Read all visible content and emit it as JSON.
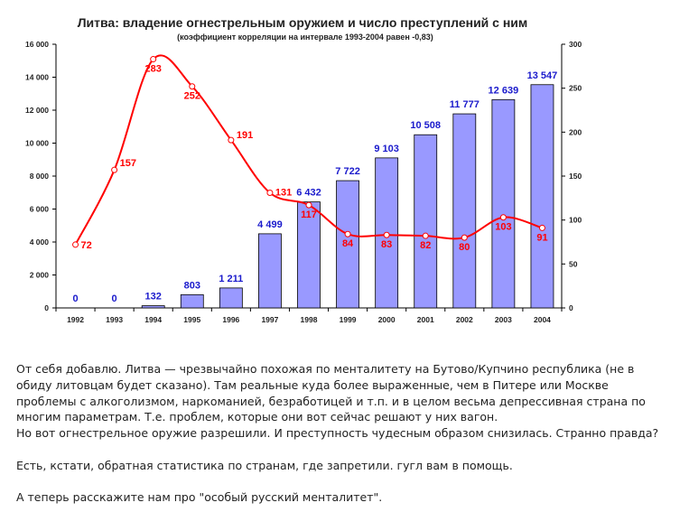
{
  "chart_data": {
    "type": "bar+line",
    "title": "Литва: владение огнестрельным оружием и число преступлений с ним",
    "subtitle": "(коэффициент корреляции на интервале 1993-2004 равен -0,83)",
    "categories": [
      "1992",
      "1993",
      "1994",
      "1995",
      "1996",
      "1997",
      "1998",
      "1999",
      "2000",
      "2001",
      "2002",
      "2003",
      "2004"
    ],
    "series": [
      {
        "type": "bar",
        "axis": "left",
        "values": [
          0,
          0,
          132,
          803,
          1211,
          4499,
          6432,
          7722,
          9103,
          10508,
          11777,
          12639,
          13547
        ],
        "labels": [
          "0",
          "0",
          "132",
          "803",
          "1 211",
          "4 499",
          "6 432",
          "7 722",
          "9 103",
          "10 508",
          "11 777",
          "12 639",
          "13 547"
        ],
        "color": "#9999ff",
        "label_color": "#1a1acc"
      },
      {
        "type": "line",
        "axis": "right",
        "values": [
          72,
          157,
          283,
          252,
          191,
          131,
          117,
          84,
          83,
          82,
          80,
          103,
          91
        ],
        "labels": [
          "72",
          "157",
          "283",
          "252",
          "191",
          "131",
          "117",
          "84",
          "83",
          "82",
          "80",
          "103",
          "91"
        ],
        "color": "#ff0000"
      }
    ],
    "y_left": {
      "range": [
        0,
        16000
      ],
      "ticks": [
        "0",
        "2 000",
        "4 000",
        "6 000",
        "8 000",
        "10 000",
        "12 000",
        "14 000",
        "16 000"
      ]
    },
    "y_right": {
      "range": [
        0,
        300
      ],
      "ticks": [
        "0",
        "50",
        "100",
        "150",
        "200",
        "250",
        "300"
      ]
    },
    "grid": false,
    "legend": "none"
  },
  "post": {
    "paragraphs": [
      [
        "От себя добавлю. Литва — чрезвычайно похожая по менталитету на Бутово/Купчино республика (не в",
        "обиду литовцам будет сказано). Там реальные куда более выраженные, чем в Питере или Москве",
        "проблемы с алкоголизмом, наркоманией, безработицей и т.п. и в целом весьма депрессивная страна по",
        "многим параметрам. Т.е. проблем, которые они вот сейчас решают у них вагон.",
        "Но вот огнестрельное оружие разрешили. И преступность чудесным образом снизилась. Странно правда?"
      ],
      [
        "Есть, кстати, обратная статистика по странам, где запретили. гугл вам в помощь."
      ],
      [
        "А теперь расскажите нам про \"особый русский менталитет\"."
      ]
    ]
  }
}
